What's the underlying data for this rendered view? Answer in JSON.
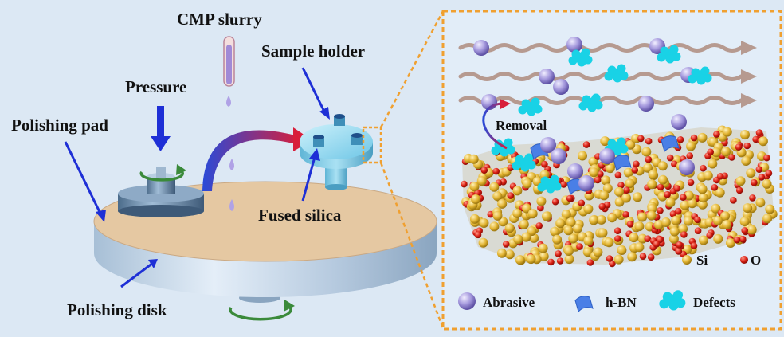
{
  "labels": {
    "cmp_slurry": "CMP slurry",
    "sample_holder": "Sample holder",
    "pressure": "Pressure",
    "polishing_pad": "Polishing pad",
    "fused_silica": "Fused silica",
    "polishing_disk": "Polishing disk",
    "removal": "Removal",
    "si": "Si",
    "o": "O"
  },
  "legend": {
    "abrasive": "Abrasive",
    "hbn": "h-BN",
    "defects": "Defects"
  },
  "colors": {
    "background": "#dce8f4",
    "pad": "#e5c8a2",
    "disk": "#b4cbe0",
    "arrow": "#1e2fd6",
    "abrasive": "#9a8ed6",
    "hbn": "#4a7fe6",
    "defect": "#19d2e6",
    "silicon": "#e2b431",
    "oxygen": "#d91e12",
    "zoom_border": "#f0a030",
    "slurry_flow": "#b69a90",
    "rotation": "#3a8a3a"
  },
  "icons": [
    "pressure-arrow-icon",
    "rotation-arrow-icon",
    "curved-transfer-arrow-icon",
    "slurry-drop-icon"
  ]
}
